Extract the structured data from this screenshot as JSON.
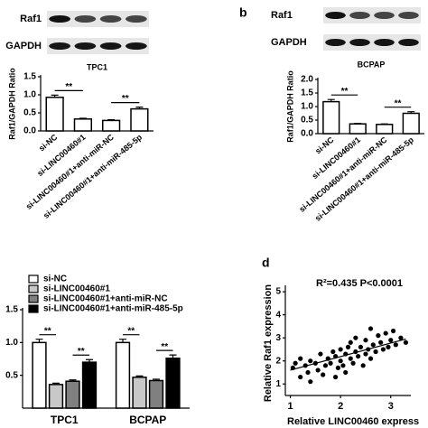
{
  "chart_data": [
    {
      "type": "bar",
      "title": "TPC1",
      "blot_labels": [
        "Raf1",
        "GAPDH"
      ],
      "ylabel": "Raf1/GAPDH Ratio",
      "categories": [
        "si-NC",
        "si-LINC00460#1",
        "si-LINC00460#1+anti-miR-NC",
        "si-LINC00460#1+anti-miR-485-5p"
      ],
      "values": [
        0.93,
        0.33,
        0.29,
        0.61
      ],
      "errors": [
        0.06,
        0.02,
        0.02,
        0.05
      ],
      "colors": [
        "#ffffff",
        "#ffffff",
        "#ffffff",
        "#ffffff"
      ],
      "ylim": [
        0,
        1.5
      ],
      "yticks": [
        {
          "value": 0,
          "label": "0.0"
        },
        {
          "value": 0.5,
          "label": "0.5"
        },
        {
          "value": 1,
          "label": "1.0"
        },
        {
          "value": 1.5,
          "label": "1.5"
        }
      ],
      "annotations": [
        "**",
        "**"
      ]
    },
    {
      "type": "bar",
      "panel_label": "b",
      "title": "BCPAP",
      "blot_labels": [
        "Raf1",
        "GAPDH"
      ],
      "ylabel": "Raf1/GAPDH Ratio",
      "categories": [
        "si-NC",
        "si-LINC00460#1",
        "si-LINC00460#1+anti-miR-NC",
        "si-LINC00460#1+anti-miR-485-5p"
      ],
      "values": [
        1.18,
        0.36,
        0.34,
        0.75
      ],
      "errors": [
        0.08,
        0.02,
        0.02,
        0.06
      ],
      "colors": [
        "#ffffff",
        "#ffffff",
        "#ffffff",
        "#ffffff"
      ],
      "ylim": [
        0,
        2
      ],
      "yticks": [
        {
          "value": 0,
          "label": "0.0"
        },
        {
          "value": 0.5,
          "label": "0.5"
        },
        {
          "value": 1,
          "label": "1.0"
        },
        {
          "value": 1.5,
          "label": "1.5"
        },
        {
          "value": 2,
          "label": "2.0"
        }
      ],
      "annotations": [
        "**",
        "**"
      ]
    },
    {
      "type": "grouped_bar",
      "categories": [
        "TPC1",
        "BCPAP"
      ],
      "series": [
        {
          "name": "si-NC",
          "color": "#ffffff",
          "values": [
            1.0,
            1.0
          ],
          "errors": [
            0.05,
            0.05
          ]
        },
        {
          "name": "si-LINC00460#1",
          "color": "#c8c8c8",
          "values": [
            0.36,
            0.47
          ],
          "errors": [
            0.02,
            0.02
          ]
        },
        {
          "name": "si-LINC00460#1+anti-miR-NC",
          "color": "#808080",
          "values": [
            0.41,
            0.42
          ],
          "errors": [
            0.02,
            0.02
          ]
        },
        {
          "name": "si-LINC00460#1+anti-miR-485-5p",
          "color": "#000000",
          "values": [
            0.7,
            0.76
          ],
          "errors": [
            0.04,
            0.05
          ]
        }
      ],
      "ylim": [
        0,
        1.5
      ],
      "yticks": [
        {
          "value": 0.5,
          "label": "0.5"
        },
        {
          "value": 1,
          "label": "1.0"
        },
        {
          "value": 1.5,
          "label": "1.5"
        }
      ],
      "annotations": [
        "**",
        "**",
        "**",
        "**"
      ]
    },
    {
      "type": "scatter",
      "panel_label": "d",
      "annotation": "R²=0.435 P<0.0001",
      "xlabel": "Relative LINC00460 express",
      "ylabel": "Relative Raf1 expression",
      "x": [
        1.05,
        1.1,
        1.2,
        1.3,
        1.35,
        1.4,
        1.5,
        1.55,
        1.6,
        1.65,
        1.7,
        1.75,
        1.8,
        1.85,
        1.9,
        1.9,
        1.95,
        2.0,
        2.0,
        2.05,
        2.1,
        2.1,
        2.15,
        2.2,
        2.2,
        2.25,
        2.3,
        2.3,
        2.35,
        2.4,
        2.45,
        2.5,
        2.5,
        2.55,
        2.6,
        2.6,
        2.65,
        2.7,
        2.75,
        2.8,
        2.85,
        2.9,
        2.95,
        3.0,
        3.05,
        3.1,
        3.2,
        3.3,
        1.4,
        1.2
      ],
      "y": [
        1.7,
        1.9,
        2.1,
        1.8,
        1.5,
        2.0,
        1.9,
        1.6,
        2.3,
        1.4,
        1.8,
        2.1,
        1.9,
        2.4,
        1.3,
        2.2,
        1.7,
        2.0,
        2.5,
        1.8,
        2.3,
        1.5,
        2.6,
        2.1,
        2.8,
        1.9,
        2.4,
        3.0,
        2.2,
        2.6,
        1.8,
        2.9,
        2.3,
        2.5,
        3.4,
        2.1,
        2.7,
        2.4,
        3.1,
        2.8,
        2.5,
        3.2,
        2.6,
        2.9,
        3.3,
        2.7,
        3.0,
        2.8,
        1.1,
        1.3
      ],
      "trendline": {
        "x": [
          1.0,
          3.3
        ],
        "y": [
          1.6,
          2.95
        ]
      },
      "xlim": [
        0.9,
        3.4
      ],
      "ylim": [
        0.5,
        5.2
      ],
      "xticks": [
        1,
        2,
        3
      ],
      "yticks": [
        1,
        2,
        3,
        4,
        5
      ]
    }
  ]
}
